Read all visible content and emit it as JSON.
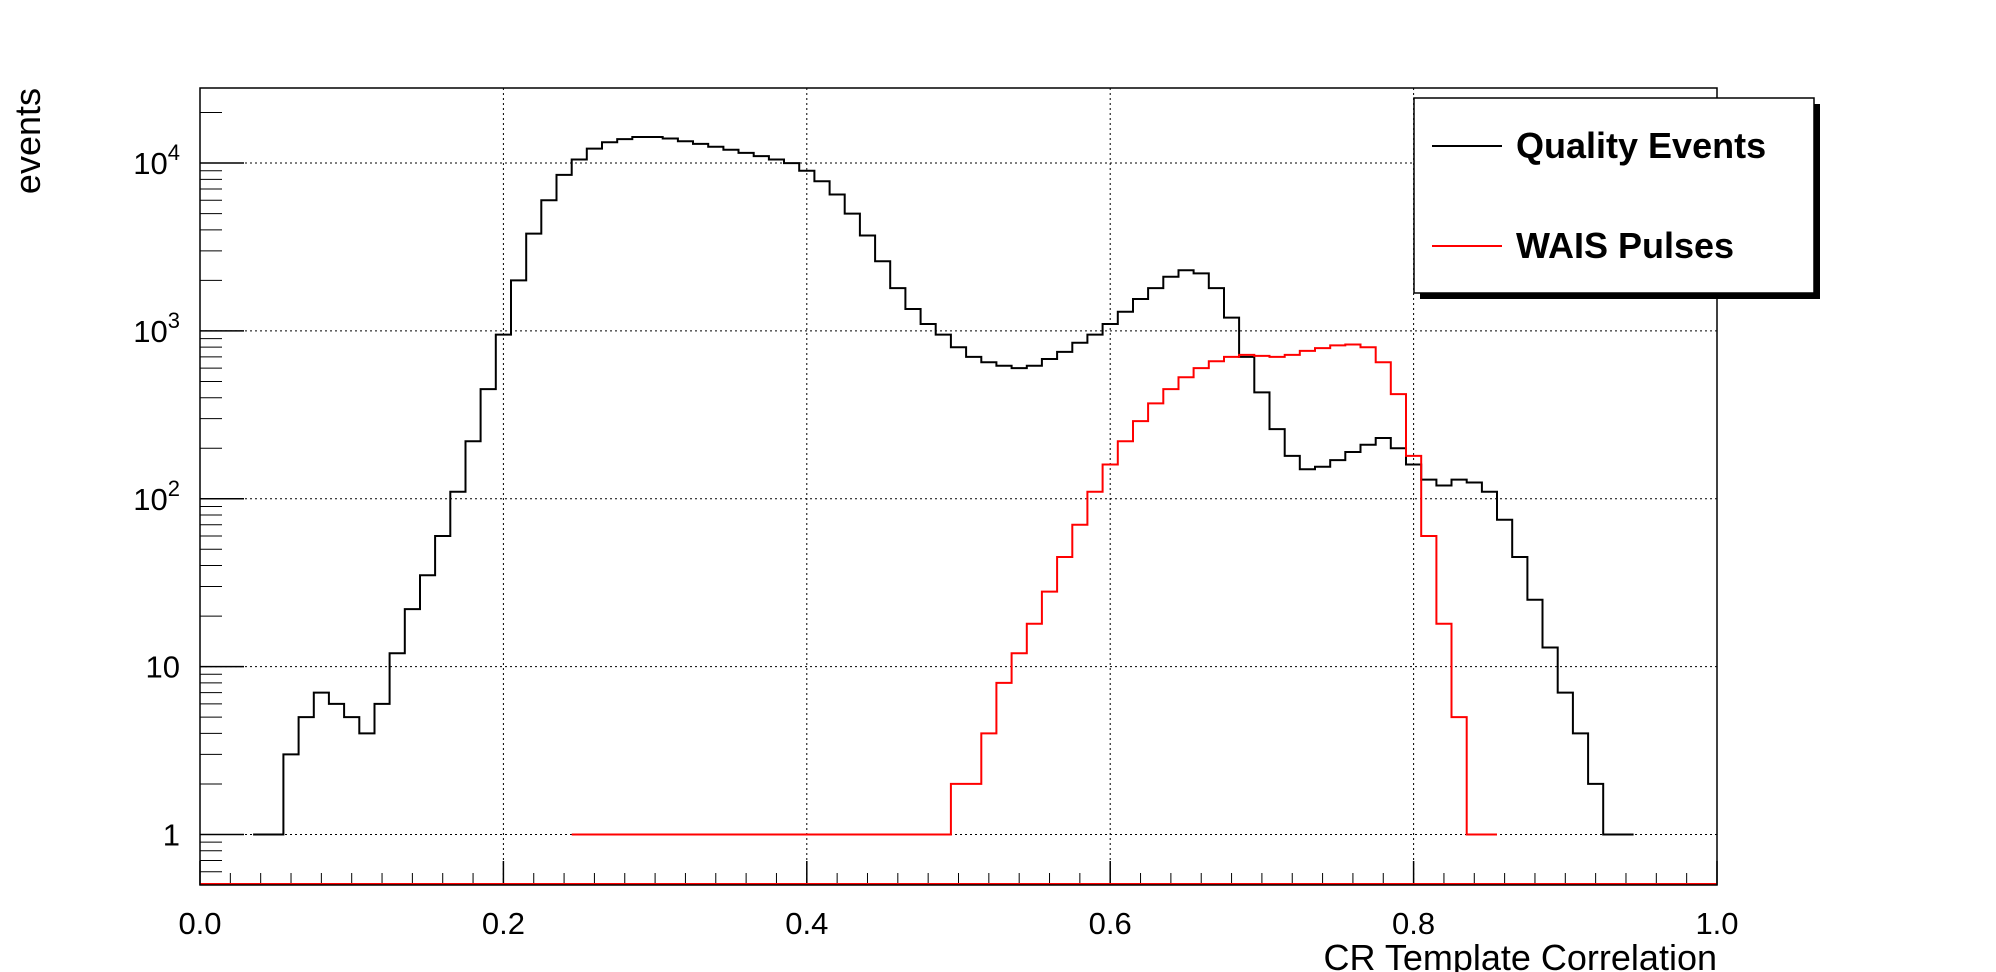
{
  "chart_data": {
    "type": "line",
    "title": "",
    "xlabel": "CR Template Correlation",
    "ylabel": "events",
    "xlim": [
      0.0,
      1.0
    ],
    "ylim": [
      0.5,
      28000
    ],
    "y_scale": "log",
    "grid": true,
    "legend_position": "top-right",
    "x_ticks": [
      {
        "value": 0.0,
        "label": "0.0"
      },
      {
        "value": 0.2,
        "label": "0.2"
      },
      {
        "value": 0.4,
        "label": "0.4"
      },
      {
        "value": 0.6,
        "label": "0.6"
      },
      {
        "value": 0.8,
        "label": "0.8"
      },
      {
        "value": 1.0,
        "label": "1.0"
      }
    ],
    "y_ticks": [
      {
        "value": 1,
        "label": "1",
        "sup": ""
      },
      {
        "value": 10,
        "label": "10",
        "sup": ""
      },
      {
        "value": 100,
        "label": "10",
        "sup": "2"
      },
      {
        "value": 1000,
        "label": "10",
        "sup": "3"
      },
      {
        "value": 10000,
        "label": "10",
        "sup": "4"
      }
    ],
    "series": [
      {
        "name": "Quality Events",
        "color": "#000000",
        "x": [
          0.04,
          0.05,
          0.06,
          0.07,
          0.08,
          0.09,
          0.1,
          0.11,
          0.12,
          0.13,
          0.14,
          0.15,
          0.16,
          0.17,
          0.18,
          0.19,
          0.2,
          0.21,
          0.22,
          0.23,
          0.24,
          0.25,
          0.26,
          0.27,
          0.28,
          0.29,
          0.3,
          0.31,
          0.32,
          0.33,
          0.34,
          0.35,
          0.36,
          0.37,
          0.38,
          0.39,
          0.4,
          0.41,
          0.42,
          0.43,
          0.44,
          0.45,
          0.46,
          0.47,
          0.48,
          0.49,
          0.5,
          0.51,
          0.52,
          0.53,
          0.54,
          0.55,
          0.56,
          0.57,
          0.58,
          0.59,
          0.6,
          0.61,
          0.62,
          0.63,
          0.64,
          0.65,
          0.66,
          0.67,
          0.68,
          0.69,
          0.7,
          0.71,
          0.72,
          0.73,
          0.74,
          0.75,
          0.76,
          0.77,
          0.78,
          0.79,
          0.8,
          0.81,
          0.82,
          0.83,
          0.84,
          0.85,
          0.86,
          0.87,
          0.88,
          0.89,
          0.9,
          0.91,
          0.92,
          0.93,
          0.94
        ],
        "values": [
          1,
          1,
          3,
          5,
          7,
          6,
          5,
          4,
          6,
          12,
          22,
          35,
          60,
          110,
          220,
          450,
          950,
          2000,
          3800,
          6000,
          8500,
          10500,
          12200,
          13300,
          13900,
          14300,
          14300,
          14000,
          13500,
          13000,
          12500,
          12000,
          11500,
          11000,
          10500,
          10000,
          9000,
          7800,
          6500,
          5000,
          3700,
          2600,
          1800,
          1350,
          1100,
          950,
          800,
          700,
          650,
          620,
          600,
          620,
          680,
          750,
          850,
          950,
          1100,
          1300,
          1550,
          1800,
          2100,
          2300,
          2200,
          1800,
          1200,
          700,
          430,
          260,
          180,
          150,
          155,
          170,
          190,
          210,
          230,
          200,
          160,
          130,
          120,
          130,
          125,
          110,
          75,
          45,
          25,
          13,
          7,
          4,
          2,
          1,
          1
        ]
      },
      {
        "name": "WAIS Pulses",
        "color": "#ff0000",
        "x": [
          0.25,
          0.28,
          0.29,
          0.3,
          0.37,
          0.39,
          0.43,
          0.45,
          0.46,
          0.47,
          0.48,
          0.49,
          0.5,
          0.51,
          0.52,
          0.53,
          0.54,
          0.55,
          0.56,
          0.57,
          0.58,
          0.59,
          0.6,
          0.61,
          0.62,
          0.63,
          0.64,
          0.65,
          0.66,
          0.67,
          0.68,
          0.69,
          0.7,
          0.71,
          0.72,
          0.73,
          0.74,
          0.75,
          0.76,
          0.77,
          0.78,
          0.79,
          0.8,
          0.81,
          0.82,
          0.83,
          0.84,
          0.85
        ],
        "values": [
          1,
          1,
          1,
          1,
          1,
          1,
          1,
          1,
          1,
          1,
          1,
          1,
          2,
          2,
          4,
          8,
          12,
          18,
          28,
          45,
          70,
          110,
          160,
          220,
          290,
          370,
          450,
          530,
          600,
          660,
          700,
          720,
          710,
          700,
          720,
          760,
          790,
          820,
          830,
          800,
          650,
          420,
          180,
          60,
          18,
          5,
          1,
          1
        ]
      }
    ]
  }
}
